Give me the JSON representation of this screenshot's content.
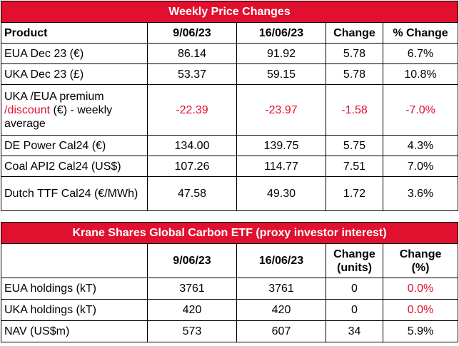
{
  "weekly": {
    "title": "Weekly Price Changes",
    "headers": [
      "Product",
      "9/06/23",
      "16/06/23",
      "Change",
      "% Change"
    ],
    "rows": [
      {
        "product": "EUA Dec 23 (€)",
        "d1": "86.14",
        "d2": "91.92",
        "chg": "5.78",
        "pct": "6.7%"
      },
      {
        "product": "UKA Dec 23 (£)",
        "d1": "53.37",
        "d2": "59.15",
        "chg": "5.78",
        "pct": "10.8%"
      },
      {
        "product_a": "UKA /EUA premium",
        "product_b": "/discount",
        "product_c": " (€) - weekly average",
        "d1": "-22.39",
        "d2": "-23.97",
        "chg": "-1.58",
        "pct": "-7.0%"
      },
      {
        "product": "DE Power Cal24 (€)",
        "d1": "134.00",
        "d2": "139.75",
        "chg": "5.75",
        "pct": "4.3%"
      },
      {
        "product": "Coal API2 Cal24 (US$)",
        "d1": "107.26",
        "d2": "114.77",
        "chg": "7.51",
        "pct": "7.0%"
      },
      {
        "product": "Dutch TTF Cal24 (€/MWh)",
        "d1": "47.58",
        "d2": "49.30",
        "chg": "1.72",
        "pct": "3.6%"
      }
    ]
  },
  "etf": {
    "title": "Krane Shares Global Carbon ETF (proxy investor interest)",
    "headers": {
      "d1": "9/06/23",
      "d2": "16/06/23",
      "chg_a": "Change",
      "chg_b": "(units)",
      "pct_a": "Change",
      "pct_b": "(%)"
    },
    "rows": [
      {
        "label": "EUA holdings (kT)",
        "d1": "3761",
        "d2": "3761",
        "chg": "0",
        "pct": "0.0%"
      },
      {
        "label": "UKA holdings (kT)",
        "d1": "420",
        "d2": "420",
        "chg": "0",
        "pct": "0.0%"
      },
      {
        "label": "NAV (US$m)",
        "d1": "573",
        "d2": "607",
        "chg": "34",
        "pct": "5.9%"
      }
    ]
  },
  "colors": {
    "accent": "#e0102e",
    "text": "#000000",
    "background": "#ffffff"
  }
}
